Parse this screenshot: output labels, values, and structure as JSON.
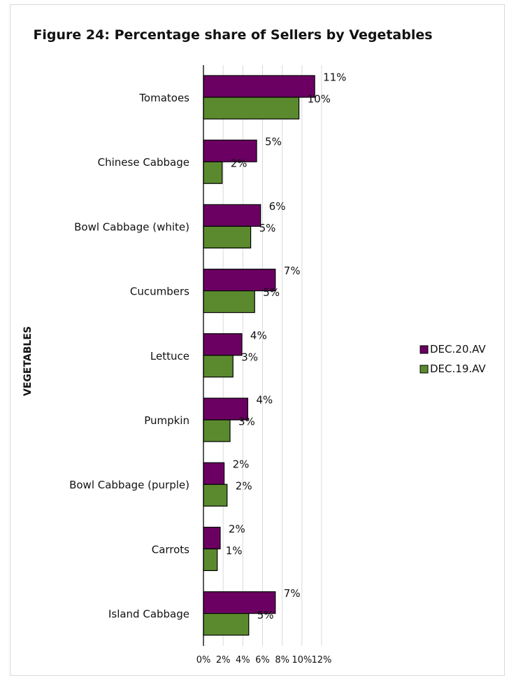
{
  "chart_data": {
    "type": "bar",
    "orientation": "horizontal",
    "title": "Figure 24: Percentage share of Sellers by Vegetables",
    "ylabel": "VEGETABLES",
    "xlabel": "",
    "xlim": [
      0,
      12
    ],
    "x_ticks": [
      "0%",
      "2%",
      "4%",
      "6%",
      "8%",
      "10%",
      "12%"
    ],
    "grid": true,
    "legend_position": "right",
    "categories": [
      "Tomatoes",
      "Chinese Cabbage",
      "Bowl Cabbage (white)",
      "Cucumbers",
      "Lettuce",
      "Pumpkin",
      "Bowl Cabbage (purple)",
      "Carrots",
      "Island Cabbage"
    ],
    "series": [
      {
        "name": "DEC.20.AV",
        "color": "#6b0062",
        "values": [
          11.3,
          5.4,
          5.8,
          7.3,
          3.9,
          4.5,
          2.1,
          1.7,
          7.3
        ],
        "labels": [
          "11%",
          "5%",
          "6%",
          "7%",
          "4%",
          "4%",
          "2%",
          "2%",
          "7%"
        ]
      },
      {
        "name": "DEC.19.AV",
        "color": "#5b8a2e",
        "values": [
          9.7,
          1.9,
          4.8,
          5.2,
          3.0,
          2.7,
          2.4,
          1.4,
          4.6
        ],
        "labels": [
          "10%",
          "2%",
          "5%",
          "5%",
          "3%",
          "3%",
          "2%",
          "1%",
          "5%"
        ]
      }
    ]
  }
}
